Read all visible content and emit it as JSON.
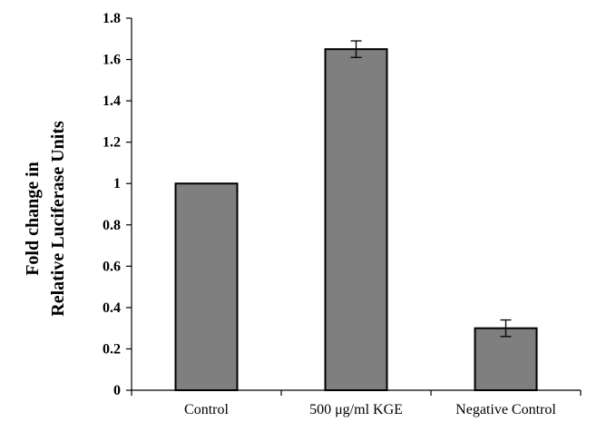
{
  "chart_data": {
    "type": "bar",
    "categories": [
      "Control",
      "500 μg/ml KGE",
      "Negative Control"
    ],
    "values": [
      1.0,
      1.65,
      0.3
    ],
    "errors": [
      0.0,
      0.04,
      0.04
    ],
    "title": "",
    "xlabel": "",
    "ylabel_lines": [
      "Fold change in",
      "Relative Luciferase Units"
    ],
    "ylim": [
      0,
      1.8
    ],
    "yticks": [
      0,
      0.2,
      0.4,
      0.6,
      0.8,
      1,
      1.2,
      1.4,
      1.6,
      1.8
    ],
    "ytick_labels": [
      "0",
      "0.2",
      "0.4",
      "0.6",
      "0.8",
      "1",
      "1.2",
      "1.4",
      "1.6",
      "1.8"
    ],
    "grid": false,
    "legend": "none",
    "colors": {
      "bar_fill": "#7f7f7f",
      "bar_stroke": "#000000",
      "axis": "#000000"
    }
  }
}
